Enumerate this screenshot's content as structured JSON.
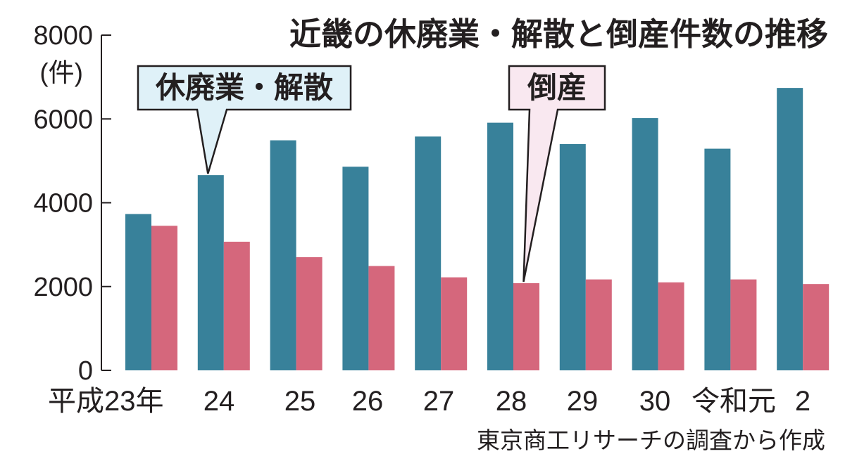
{
  "chart_data": {
    "type": "bar",
    "title": "近畿の休廃業・解散と倒産件数の推移",
    "ylabel": "(件)",
    "ylim": [
      0,
      8000
    ],
    "yticks": [
      "0",
      "2000",
      "4000",
      "6000",
      "8000"
    ],
    "categories": [
      "平成23年",
      "24",
      "25",
      "26",
      "27",
      "28",
      "29",
      "30",
      "令和元",
      "2"
    ],
    "series": [
      {
        "name": "休廃業・解散",
        "color": "#38819a",
        "values": [
          3730,
          4660,
          5490,
          4860,
          5580,
          5910,
          5400,
          6020,
          5290,
          6740
        ]
      },
      {
        "name": "倒産",
        "color": "#d5677c",
        "values": [
          3450,
          3070,
          2700,
          2490,
          2220,
          2080,
          2170,
          2100,
          2170,
          2060
        ]
      }
    ],
    "source": "東京商工リサーチの調査から作成",
    "grid": false,
    "legend": "callouts"
  }
}
